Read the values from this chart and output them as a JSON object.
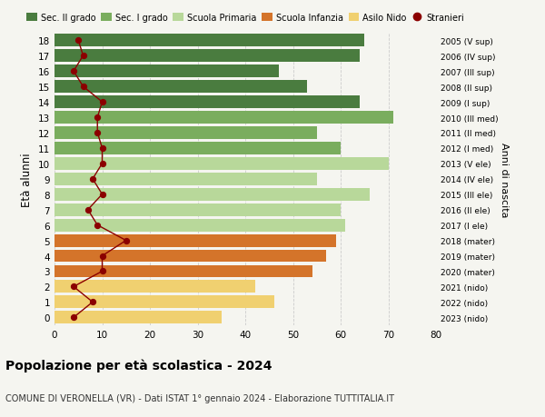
{
  "ages": [
    18,
    17,
    16,
    15,
    14,
    13,
    12,
    11,
    10,
    9,
    8,
    7,
    6,
    5,
    4,
    3,
    2,
    1,
    0
  ],
  "bar_values": [
    65,
    64,
    47,
    53,
    64,
    71,
    55,
    60,
    70,
    55,
    66,
    60,
    61,
    59,
    57,
    54,
    42,
    46,
    35
  ],
  "right_labels": [
    "2005 (V sup)",
    "2006 (IV sup)",
    "2007 (III sup)",
    "2008 (II sup)",
    "2009 (I sup)",
    "2010 (III med)",
    "2011 (II med)",
    "2012 (I med)",
    "2013 (V ele)",
    "2014 (IV ele)",
    "2015 (III ele)",
    "2016 (II ele)",
    "2017 (I ele)",
    "2018 (mater)",
    "2019 (mater)",
    "2020 (mater)",
    "2021 (nido)",
    "2022 (nido)",
    "2023 (nido)"
  ],
  "bar_colors": [
    "#4a7c3f",
    "#4a7c3f",
    "#4a7c3f",
    "#4a7c3f",
    "#4a7c3f",
    "#7aad5e",
    "#7aad5e",
    "#7aad5e",
    "#b8d89a",
    "#b8d89a",
    "#b8d89a",
    "#b8d89a",
    "#b8d89a",
    "#d4742a",
    "#d4742a",
    "#d4742a",
    "#f0d070",
    "#f0d070",
    "#f0d070"
  ],
  "stranieri_values": [
    5,
    6,
    4,
    6,
    10,
    9,
    9,
    10,
    10,
    8,
    10,
    7,
    9,
    15,
    10,
    10,
    4,
    8,
    4
  ],
  "stranieri_color": "#8b0000",
  "title_bold": "Popolazione per età scolastica - 2024",
  "subtitle": "COMUNE DI VERONELLA (VR) - Dati ISTAT 1° gennaio 2024 - Elaborazione TUTTITALIA.IT",
  "ylabel_left": "Età alunni",
  "ylabel_right": "Anni di nascita",
  "xlim": [
    0,
    80
  ],
  "xticks": [
    0,
    10,
    20,
    30,
    40,
    50,
    60,
    70,
    80
  ],
  "legend_labels": [
    "Sec. II grado",
    "Sec. I grado",
    "Scuola Primaria",
    "Scuola Infanzia",
    "Asilo Nido",
    "Stranieri"
  ],
  "legend_colors": [
    "#4a7c3f",
    "#7aad5e",
    "#b8d89a",
    "#d4742a",
    "#f0d070",
    "#8b0000"
  ],
  "background_color": "#f5f5f0",
  "grid_color": "#cccccc"
}
